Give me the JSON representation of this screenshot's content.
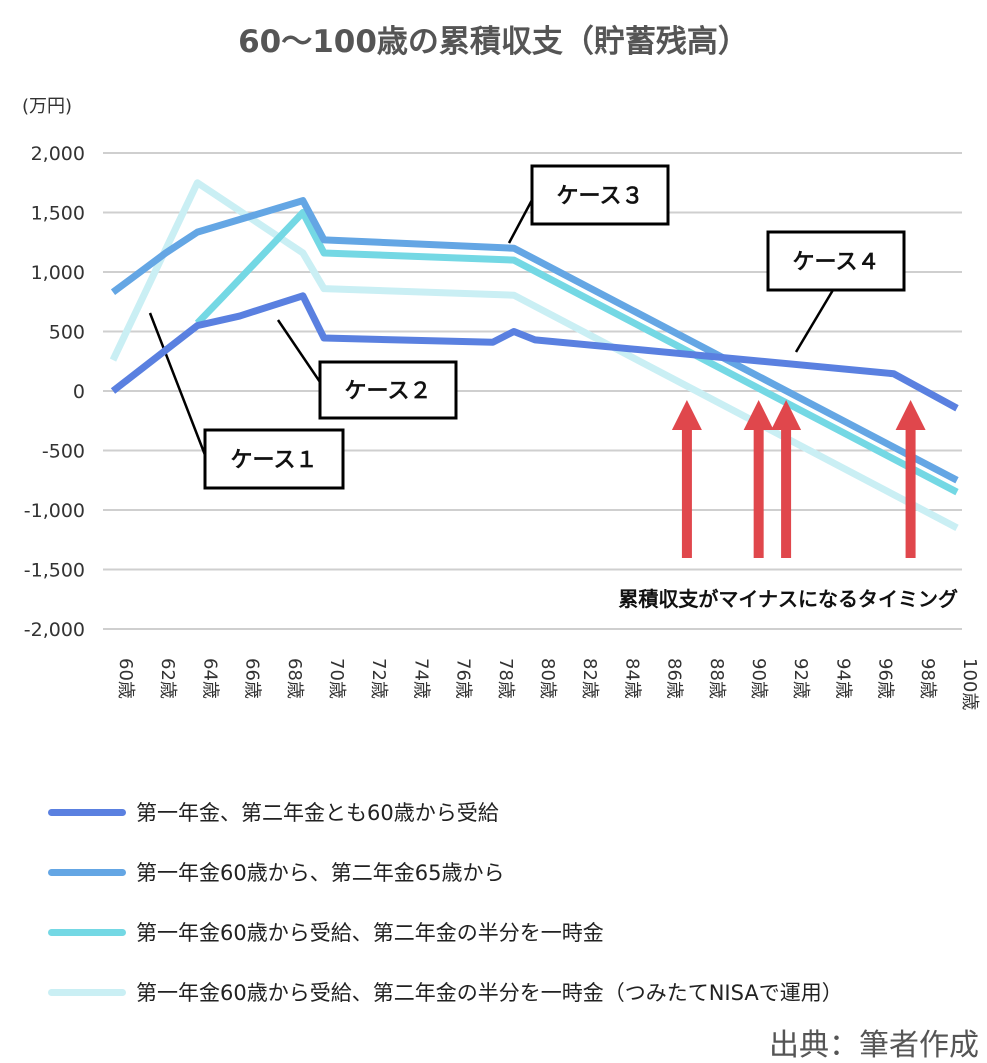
{
  "chart_data": {
    "type": "line",
    "title": "60〜100歳の累積収支（貯蓄残高）",
    "ylabel": "(万円)",
    "ylim": [
      -2000,
      2000
    ],
    "xlim": [
      60,
      100
    ],
    "yticks": [
      2000,
      1500,
      1000,
      500,
      0,
      -500,
      -1000,
      -1500,
      -2000
    ],
    "ytick_labels": [
      "2,000",
      "1,500",
      "1,000",
      "500",
      "0",
      "-500",
      "-1,000",
      "-1,500",
      "-2,000"
    ],
    "xtick_labels": [
      "60歳",
      "62歳",
      "64歳",
      "66歳",
      "68歳",
      "70歳",
      "72歳",
      "74歳",
      "76歳",
      "78歳",
      "80歳",
      "82歳",
      "84歳",
      "86歳",
      "88歳",
      "90歳",
      "92歳",
      "94歳",
      "96歳",
      "98歳",
      "100歳"
    ],
    "grid": true,
    "legend_placement": "bottom",
    "series": [
      {
        "name": "第一年金、第二年金とも60歳から受給",
        "color": "#5a80e0",
        "label": "ケース１",
        "points": [
          [
            60,
            0
          ],
          [
            64,
            550
          ],
          [
            66,
            630
          ],
          [
            69,
            800
          ],
          [
            70,
            445
          ],
          [
            78,
            410
          ],
          [
            79,
            500
          ],
          [
            80,
            430
          ],
          [
            97,
            145
          ],
          [
            100,
            -145
          ]
        ]
      },
      {
        "name": "第一年金60歳から、第二年金65歳から",
        "color": "#64a6e4",
        "label": "ケース３",
        "points": [
          [
            60,
            830
          ],
          [
            62.5,
            1160
          ],
          [
            64,
            1335
          ],
          [
            69,
            1600
          ],
          [
            70,
            1270
          ],
          [
            79,
            1200
          ],
          [
            100,
            -750
          ]
        ]
      },
      {
        "name": "第一年金60歳から受給、第二年金の半分を一時金",
        "color": "#74d8e4",
        "label": "ケース２",
        "points": [
          [
            64,
            570
          ],
          [
            65.2,
            790
          ],
          [
            69,
            1500
          ],
          [
            70,
            1160
          ],
          [
            79,
            1100
          ],
          [
            100,
            -850
          ]
        ]
      },
      {
        "name": "第一年金60歳から受給、第二年金の半分を一時金（つみたてNISAで運用）",
        "color": "#caeff4",
        "label": "ケース４",
        "points": [
          [
            60,
            260
          ],
          [
            64,
            1750
          ],
          [
            69,
            1160
          ],
          [
            70,
            860
          ],
          [
            79,
            805
          ],
          [
            100,
            -1150
          ]
        ]
      }
    ],
    "annotations": {
      "callouts": [
        "ケース１",
        "ケース２",
        "ケース３",
        "ケース４"
      ],
      "arrow_ages": [
        87.2,
        90.6,
        91.9,
        97.8
      ],
      "arrow_color": "#e0474c",
      "arrow_text": "累積収支がマイナスになるタイミング"
    }
  },
  "source": "出典：筆者作成"
}
